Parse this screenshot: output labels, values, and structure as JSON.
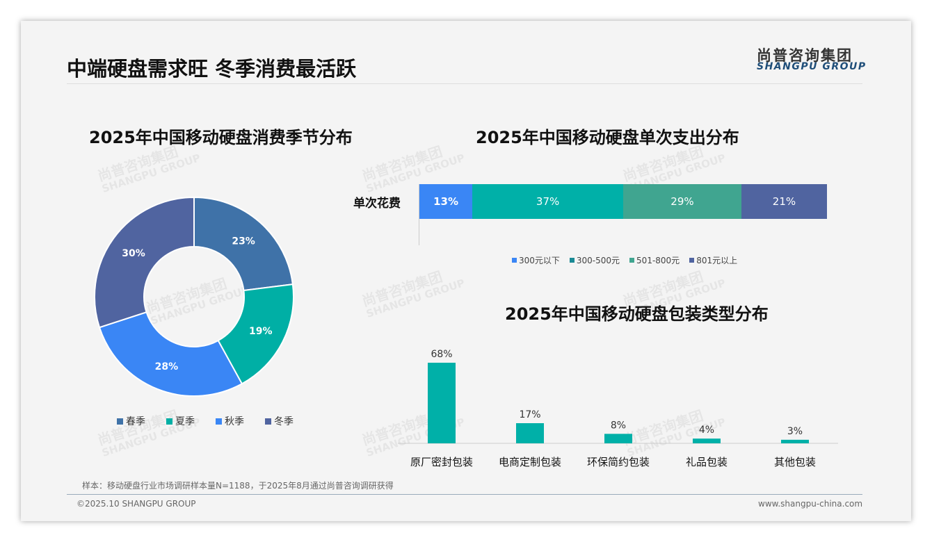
{
  "header": {
    "title": "中端硬盘需求旺 冬季消费最活跃",
    "logo_cn": "尚普咨询集团",
    "logo_en": "SHANGPU GROUP"
  },
  "watermark": {
    "cn": "尚普咨询集团",
    "en": "SHANGPU GROUP"
  },
  "footer": {
    "note": "样本：移动硬盘行业市场调研样本量N=1188，于2025年8月通过尚普咨询调研获得",
    "copyright": "©2025.10 SHANGPU GROUP",
    "website": "www.shangpu-china.com"
  },
  "chart_data": [
    {
      "type": "pie",
      "title": "2025年中国移动硬盘消费季节分布",
      "categories": [
        "春季",
        "夏季",
        "秋季",
        "冬季"
      ],
      "values": [
        23,
        19,
        28,
        30
      ],
      "labels": [
        "23%",
        "19%",
        "28%",
        "30%"
      ],
      "colors": [
        "#3f72a8",
        "#00afa5",
        "#3a86f5",
        "#5064a0"
      ],
      "legend": "bottom"
    },
    {
      "type": "bar",
      "stacked": true,
      "orientation": "horizontal",
      "title": "2025年中国移动硬盘单次支出分布",
      "categories": [
        "单次花费"
      ],
      "series": [
        {
          "name": "300元以下",
          "values": [
            13
          ],
          "label": "13%",
          "color": "#3a86f5"
        },
        {
          "name": "300-500元",
          "values": [
            37
          ],
          "label": "37%",
          "color": "#00b0a8"
        },
        {
          "name": "501-800元",
          "values": [
            29
          ],
          "label": "29%",
          "color": "#40a590"
        },
        {
          "name": "801元以上",
          "values": [
            21
          ],
          "label": "21%",
          "color": "#5064a0"
        }
      ],
      "legend": "bottom"
    },
    {
      "type": "bar",
      "title": "2025年中国移动硬盘包装类型分布",
      "categories": [
        "原厂密封包装",
        "电商定制包装",
        "环保简约包装",
        "礼品包装",
        "其他包装"
      ],
      "values": [
        68,
        17,
        8,
        4,
        3
      ],
      "labels": [
        "68%",
        "17%",
        "8%",
        "4%",
        "3%"
      ],
      "color": "#00b0a8"
    }
  ]
}
